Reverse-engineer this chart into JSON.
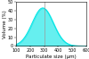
{
  "title": "",
  "xlabel": "Particulate size (μm)",
  "ylabel": "Volume (%)",
  "xmin": 100,
  "xmax": 600,
  "ymin": 0,
  "ymax": 50,
  "yticks": [
    0,
    10,
    20,
    30,
    40,
    50
  ],
  "xticks": [
    100,
    200,
    300,
    400,
    500,
    600
  ],
  "curve_color": "#00e5e5",
  "fill_color": "#00e5e5",
  "fill_alpha": 0.6,
  "vline_x": 300,
  "vline_color": "#999999",
  "peak_x": 290,
  "peak_y": 43,
  "sigma": 75,
  "background_color": "#ffffff",
  "tick_fontsize": 3.5,
  "label_fontsize": 4.0
}
